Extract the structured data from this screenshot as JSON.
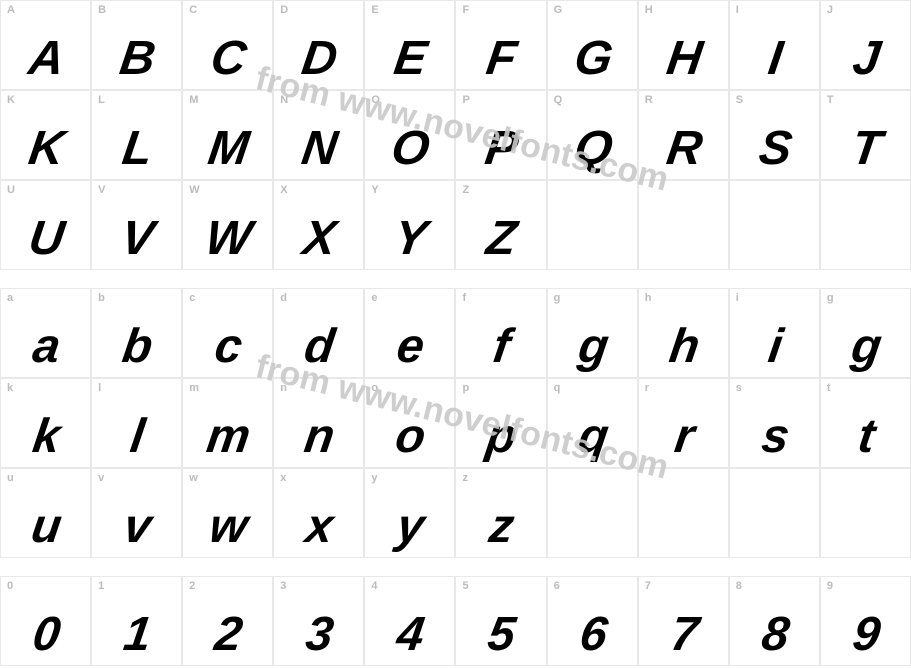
{
  "watermark_text": "from www.novelfonts.com",
  "watermark_color": "#c9c9c9",
  "cell_border_color": "#e8e8e8",
  "label_color": "#bcbcbc",
  "glyph_color": "#000000",
  "background_color": "#ffffff",
  "rows": [
    {
      "type": "uppercase",
      "cells": [
        {
          "label": "A",
          "glyph": "A"
        },
        {
          "label": "B",
          "glyph": "B"
        },
        {
          "label": "C",
          "glyph": "C"
        },
        {
          "label": "D",
          "glyph": "D"
        },
        {
          "label": "E",
          "glyph": "E"
        },
        {
          "label": "F",
          "glyph": "F"
        },
        {
          "label": "G",
          "glyph": "G"
        },
        {
          "label": "H",
          "glyph": "H"
        },
        {
          "label": "I",
          "glyph": "I"
        },
        {
          "label": "J",
          "glyph": "J"
        }
      ]
    },
    {
      "type": "uppercase",
      "cells": [
        {
          "label": "K",
          "glyph": "K"
        },
        {
          "label": "L",
          "glyph": "L"
        },
        {
          "label": "M",
          "glyph": "M"
        },
        {
          "label": "N",
          "glyph": "N"
        },
        {
          "label": "O",
          "glyph": "O"
        },
        {
          "label": "P",
          "glyph": "P"
        },
        {
          "label": "Q",
          "glyph": "Q"
        },
        {
          "label": "R",
          "glyph": "R"
        },
        {
          "label": "S",
          "glyph": "S"
        },
        {
          "label": "T",
          "glyph": "T"
        }
      ]
    },
    {
      "type": "uppercase",
      "cells": [
        {
          "label": "U",
          "glyph": "U"
        },
        {
          "label": "V",
          "glyph": "V"
        },
        {
          "label": "W",
          "glyph": "W"
        },
        {
          "label": "X",
          "glyph": "X"
        },
        {
          "label": "Y",
          "glyph": "Y"
        },
        {
          "label": "Z",
          "glyph": "Z"
        },
        {
          "label": "",
          "glyph": ""
        },
        {
          "label": "",
          "glyph": ""
        },
        {
          "label": "",
          "glyph": ""
        },
        {
          "label": "",
          "glyph": ""
        }
      ]
    },
    {
      "type": "lowercase",
      "cells": [
        {
          "label": "a",
          "glyph": "a"
        },
        {
          "label": "b",
          "glyph": "b"
        },
        {
          "label": "c",
          "glyph": "c"
        },
        {
          "label": "d",
          "glyph": "d"
        },
        {
          "label": "e",
          "glyph": "e"
        },
        {
          "label": "f",
          "glyph": "f"
        },
        {
          "label": "g",
          "glyph": "g"
        },
        {
          "label": "h",
          "glyph": "h"
        },
        {
          "label": "i",
          "glyph": "i"
        },
        {
          "label": "g",
          "glyph": "g"
        }
      ]
    },
    {
      "type": "lowercase",
      "cells": [
        {
          "label": "k",
          "glyph": "k"
        },
        {
          "label": "l",
          "glyph": "l"
        },
        {
          "label": "m",
          "glyph": "m"
        },
        {
          "label": "n",
          "glyph": "n"
        },
        {
          "label": "o",
          "glyph": "o"
        },
        {
          "label": "p",
          "glyph": "p"
        },
        {
          "label": "q",
          "glyph": "q"
        },
        {
          "label": "r",
          "glyph": "r"
        },
        {
          "label": "s",
          "glyph": "s"
        },
        {
          "label": "t",
          "glyph": "t"
        }
      ]
    },
    {
      "type": "lowercase",
      "cells": [
        {
          "label": "u",
          "glyph": "u"
        },
        {
          "label": "v",
          "glyph": "v"
        },
        {
          "label": "w",
          "glyph": "w"
        },
        {
          "label": "x",
          "glyph": "x"
        },
        {
          "label": "y",
          "glyph": "y"
        },
        {
          "label": "z",
          "glyph": "z"
        },
        {
          "label": "",
          "glyph": ""
        },
        {
          "label": "",
          "glyph": ""
        },
        {
          "label": "",
          "glyph": ""
        },
        {
          "label": "",
          "glyph": ""
        }
      ]
    },
    {
      "type": "digits",
      "cells": [
        {
          "label": "0",
          "glyph": "0"
        },
        {
          "label": "1",
          "glyph": "1"
        },
        {
          "label": "2",
          "glyph": "2"
        },
        {
          "label": "3",
          "glyph": "3"
        },
        {
          "label": "4",
          "glyph": "4"
        },
        {
          "label": "5",
          "glyph": "5"
        },
        {
          "label": "6",
          "glyph": "6"
        },
        {
          "label": "7",
          "glyph": "7"
        },
        {
          "label": "8",
          "glyph": "8"
        },
        {
          "label": "9",
          "glyph": "9"
        }
      ]
    }
  ]
}
